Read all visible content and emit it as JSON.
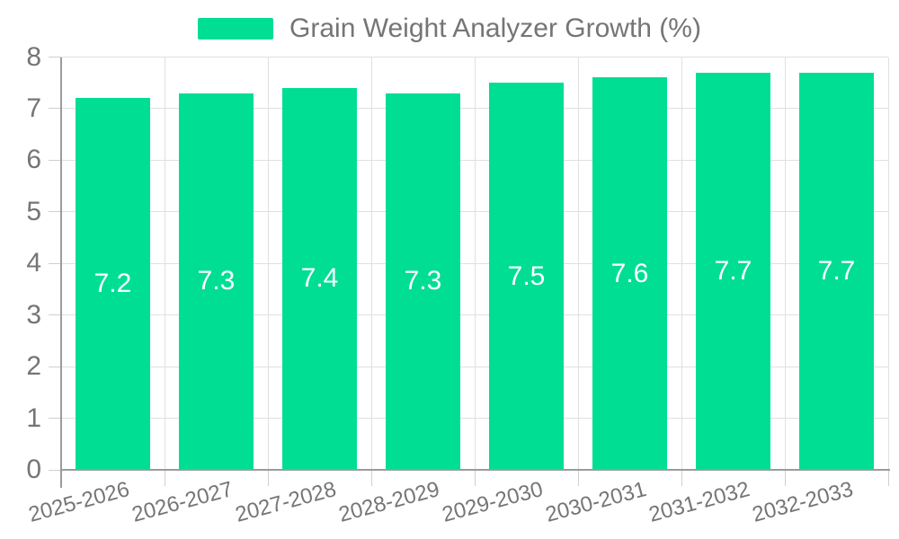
{
  "legend": {
    "label": "Grain Weight Analyzer Growth (%)"
  },
  "chart_data": {
    "type": "bar",
    "title": "Grain Weight Analyzer Growth (%)",
    "categories": [
      "2025-2026",
      "2026-2027",
      "2027-2028",
      "2028-2029",
      "2029-2030",
      "2030-2031",
      "2031-2032",
      "2032-2033"
    ],
    "values": [
      7.2,
      7.3,
      7.4,
      7.3,
      7.5,
      7.6,
      7.7,
      7.7
    ],
    "value_labels": [
      "7.2",
      "7.3",
      "7.4",
      "7.3",
      "7.5",
      "7.6",
      "7.7",
      "7.7"
    ],
    "ylim": [
      0,
      8
    ],
    "yticks": [
      0,
      1,
      2,
      3,
      4,
      5,
      6,
      7,
      8
    ],
    "ytick_labels": [
      "0",
      "1",
      "2",
      "3",
      "4",
      "5",
      "6",
      "7",
      "8"
    ],
    "grid": true,
    "legend_position": "top",
    "xlabel": "",
    "ylabel": "",
    "colors": {
      "bar": "#00de94",
      "value_label": "#ffffff",
      "grid": "#e0e0e0",
      "tick": "#cfcfcf",
      "axis": "#9b9b9b",
      "text": "#757575"
    }
  }
}
